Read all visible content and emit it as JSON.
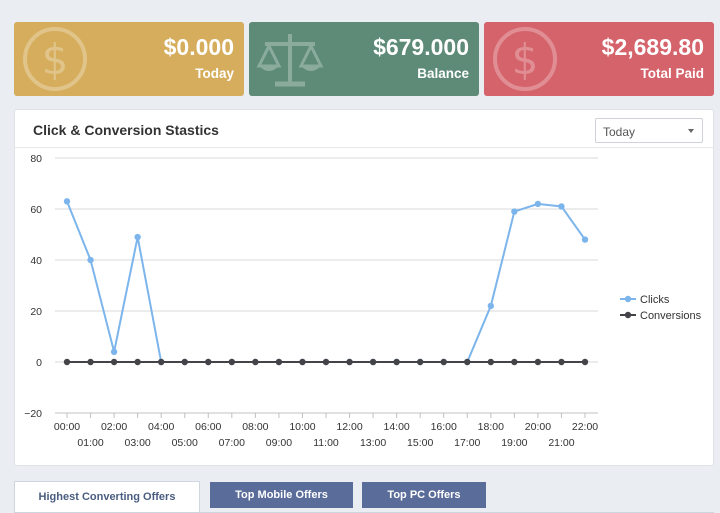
{
  "stats": [
    {
      "amount": "$0.000",
      "label": "Today",
      "color": "#d5ad5c",
      "icon": "dollar-coin-icon"
    },
    {
      "amount": "$679.000",
      "label": "Balance",
      "color": "#5e8b78",
      "icon": "scales-icon"
    },
    {
      "amount": "$2,689.80",
      "label": "Total Paid",
      "color": "#d5636b",
      "icon": "dollar-coin-icon"
    }
  ],
  "panel": {
    "title": "Click & Conversion Stastics",
    "range_select": {
      "value": "Today"
    }
  },
  "chart_data": {
    "type": "line",
    "categories": [
      "00:00",
      "01:00",
      "02:00",
      "03:00",
      "04:00",
      "05:00",
      "06:00",
      "07:00",
      "08:00",
      "09:00",
      "10:00",
      "11:00",
      "12:00",
      "13:00",
      "14:00",
      "15:00",
      "16:00",
      "17:00",
      "18:00",
      "19:00",
      "20:00",
      "21:00",
      "22:00"
    ],
    "series": [
      {
        "name": "Clicks",
        "color": "#7cb5ec",
        "values": [
          63,
          40,
          4,
          49,
          0,
          0,
          0,
          0,
          0,
          0,
          0,
          0,
          0,
          0,
          0,
          0,
          0,
          0,
          22,
          59,
          62,
          61,
          48
        ]
      },
      {
        "name": "Conversions",
        "color": "#434348",
        "values": [
          0,
          0,
          0,
          0,
          0,
          0,
          0,
          0,
          0,
          0,
          0,
          0,
          0,
          0,
          0,
          0,
          0,
          0,
          0,
          0,
          0,
          0,
          0
        ]
      }
    ],
    "ylim": [
      -20,
      80
    ],
    "yticks": [
      -20,
      0,
      20,
      40,
      60,
      80
    ],
    "grid": true,
    "legend": "right"
  },
  "tabs": [
    {
      "label": "Highest Converting Offers",
      "active": true
    },
    {
      "label": "Top Mobile Offers",
      "active": false
    },
    {
      "label": "Top PC Offers",
      "active": false
    }
  ]
}
